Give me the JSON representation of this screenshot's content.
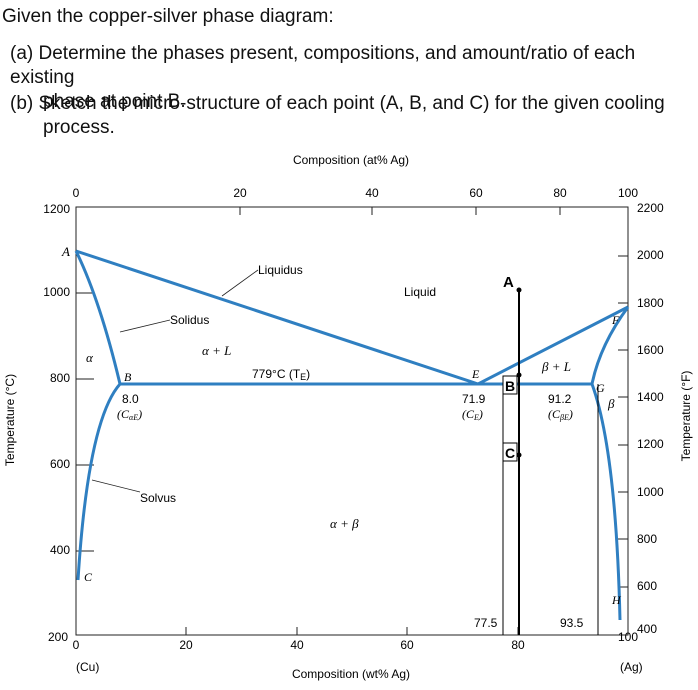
{
  "question": {
    "title": "Given the copper-silver phase diagram:",
    "part_a_line1": "(a) Determine the phases present, compositions, and amount/ratio of each existing",
    "part_a_line2": "phase at point B.",
    "part_b_line1": "(b) Sketch the micro-structure of each point (A, B, and C) for the given cooling",
    "part_b_line2": "process."
  },
  "diagram": {
    "top_axis_title": "Composition (at% Ag)",
    "bottom_axis_title": "Composition (wt% Ag)",
    "left_axis_title": "Temperature (°C)",
    "right_axis_title": "Temperature (°F)",
    "top_ticks": [
      "0",
      "20",
      "40",
      "60",
      "80",
      "100"
    ],
    "bottom_ticks": [
      "0",
      "20",
      "40",
      "60",
      "80",
      "100"
    ],
    "left_ticks": [
      "1200",
      "1000",
      "800",
      "600",
      "400",
      "200"
    ],
    "right_ticks": [
      "2200",
      "2000",
      "1800",
      "1600",
      "1400",
      "1200",
      "1000",
      "800",
      "600",
      "400"
    ],
    "cu_label": "(Cu)",
    "ag_label": "(Ag)",
    "labels": {
      "liquidus": "Liquidus",
      "solidus": "Solidus",
      "solvus": "Solvus",
      "liquid": "Liquid",
      "alpha": "α",
      "alpha_L": "α + L",
      "beta_L": "β + L",
      "beta": "β",
      "alpha_beta": "α + β",
      "eutectic_temp": "779°C (T",
      "eutectic_temp_sub": "E",
      "eutectic_temp_close": ")",
      "point_A": "A",
      "point_B": "B",
      "point_C": "C",
      "point_E": "E",
      "point_F": "F",
      "point_G": "G",
      "point_H": "H",
      "alpha_comp": "8.0",
      "alpha_comp_sym": "(C",
      "alpha_comp_sub": "αE",
      "eut_comp": "71.9",
      "eut_comp_sym": "(C",
      "eut_comp_sub": "E",
      "beta_comp": "91.2",
      "beta_comp_sym": "(C",
      "beta_comp_sub": "βE",
      "close_paren": ")",
      "marker_A": "A",
      "marker_B": "B",
      "marker_C": "C",
      "comp_77_5": "77.5",
      "comp_93_5": "93.5"
    },
    "line_color": "#2f7fc1"
  }
}
